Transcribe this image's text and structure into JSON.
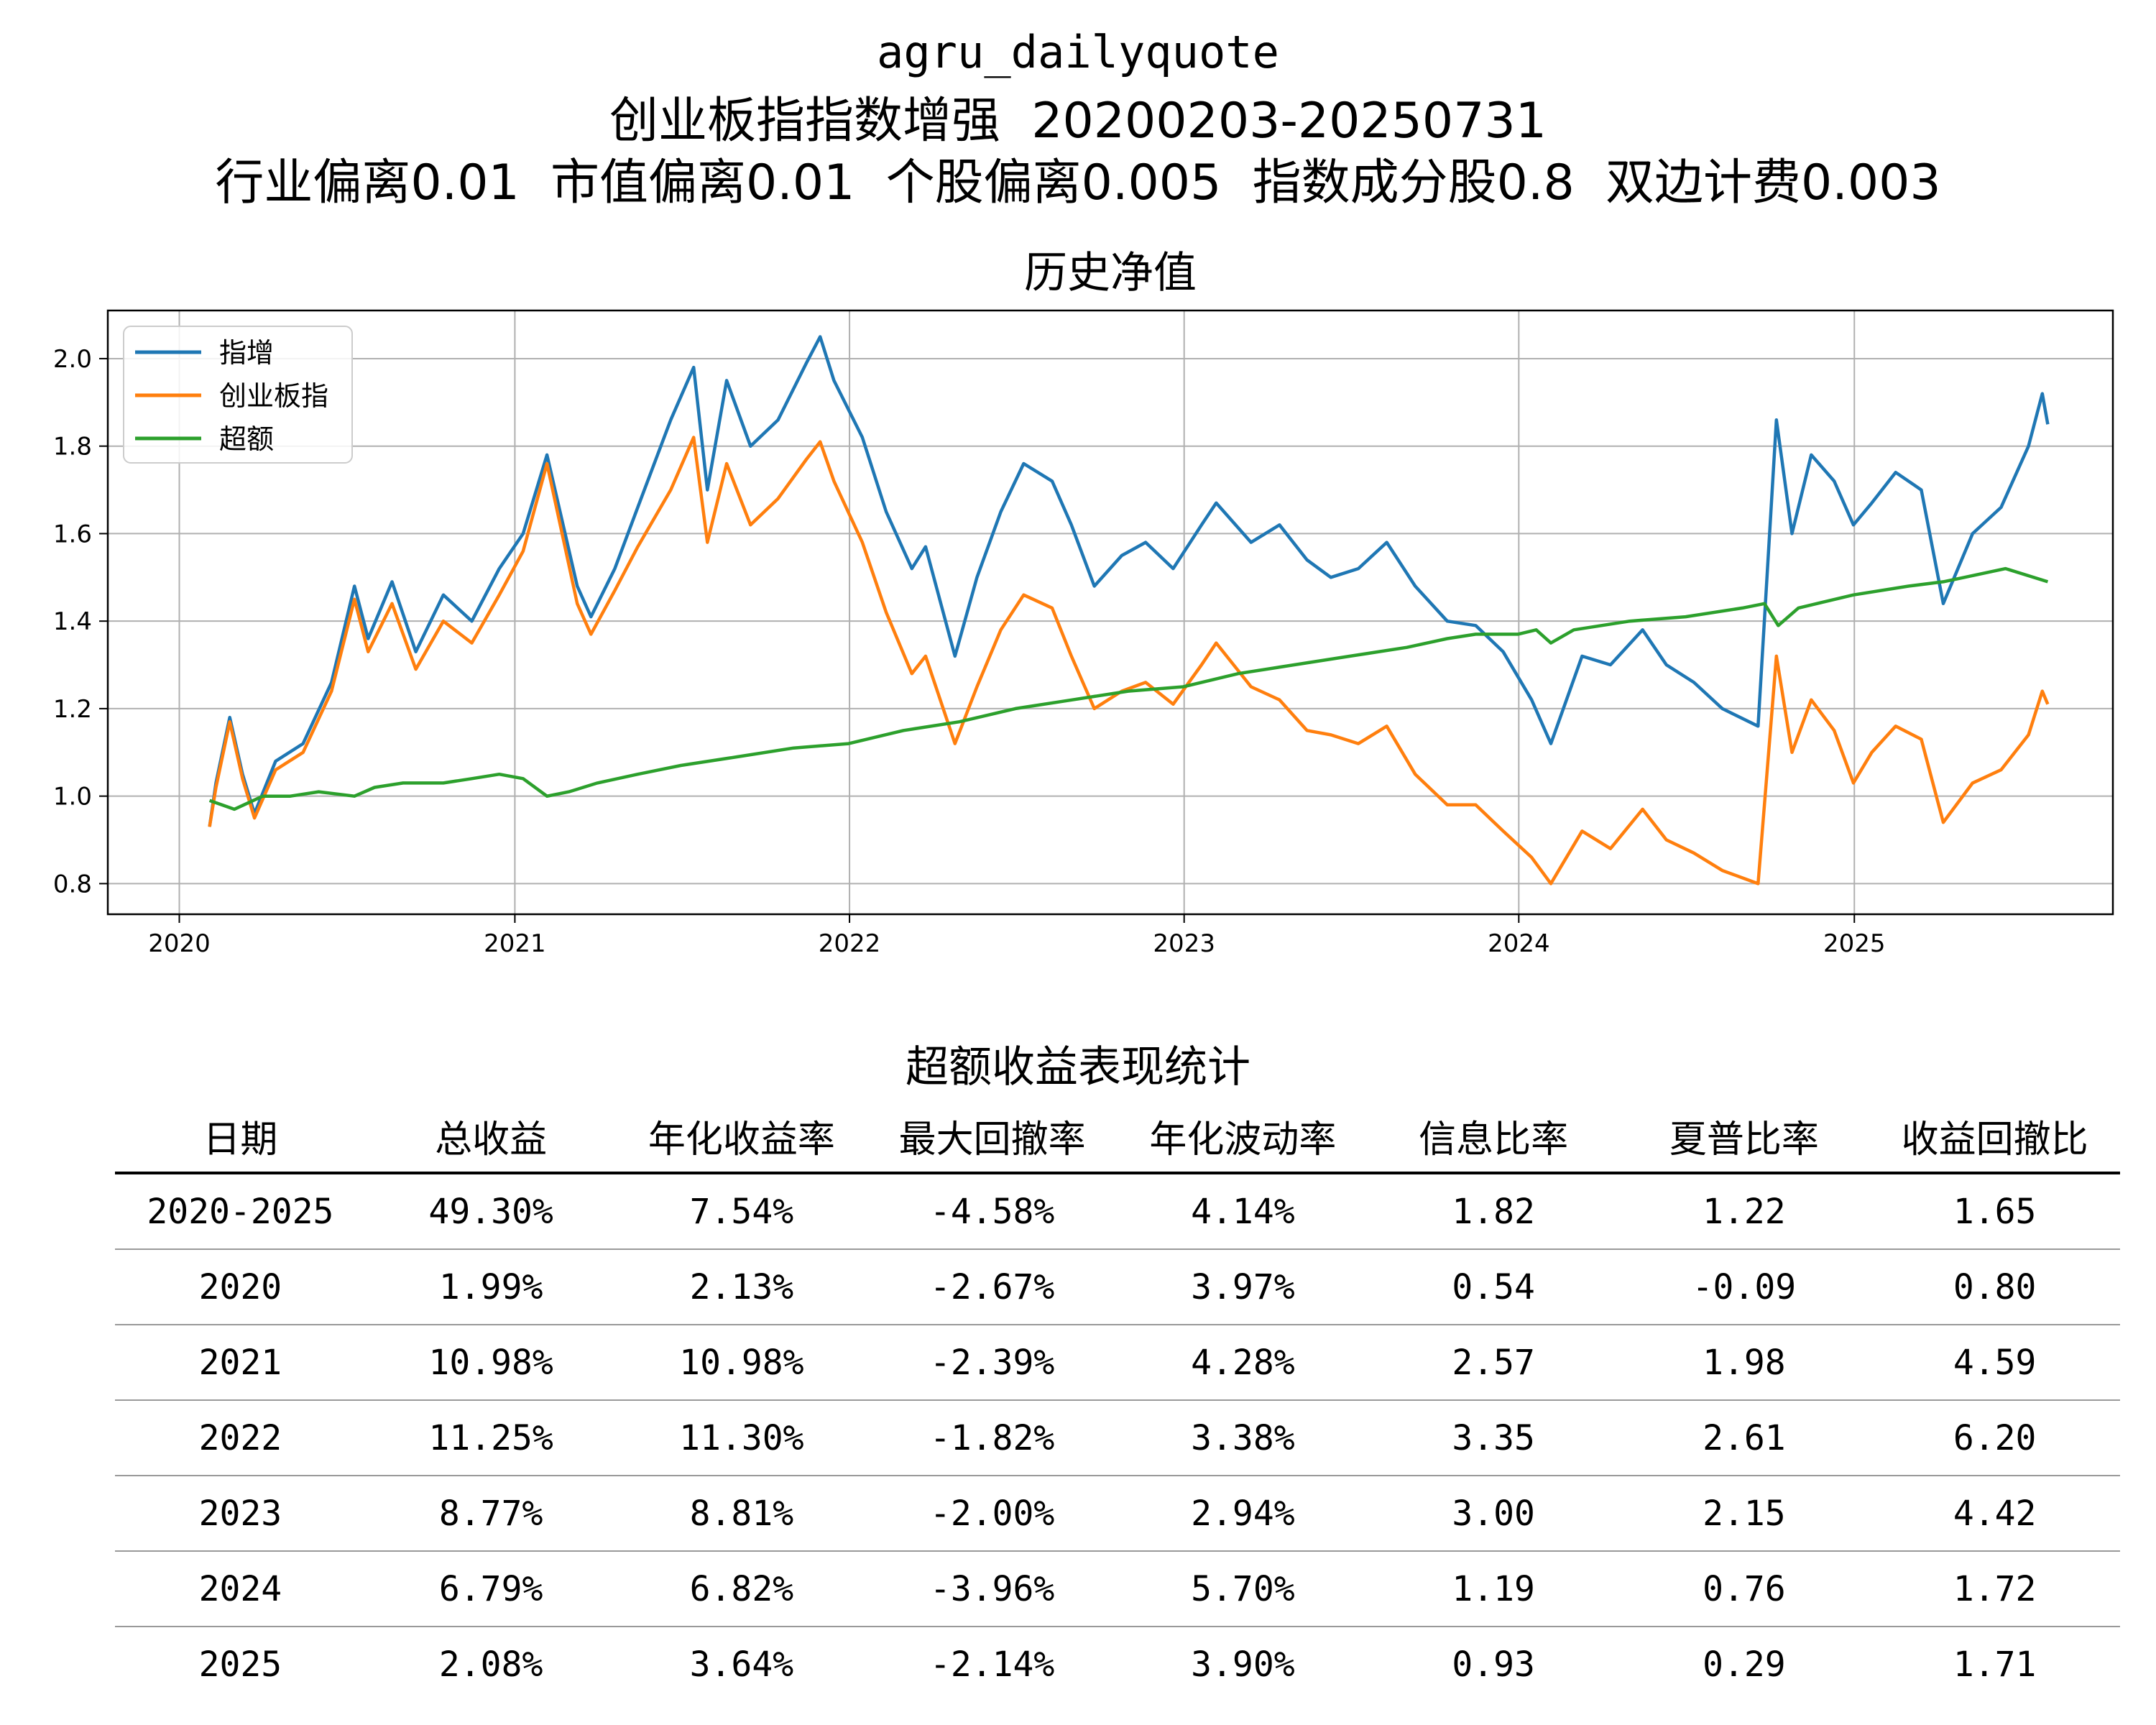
{
  "header": {
    "line1": "agru_dailyquote",
    "line2": "创业板指指数增强  20200203-20250731",
    "line3": "行业偏离0.01  市值偏离0.01  个股偏离0.005  指数成分股0.8  双边计费0.003"
  },
  "chart_data": {
    "type": "line",
    "title": "历史净值",
    "xlabel": "",
    "ylabel": "",
    "xlim": [
      "2019-10-15",
      "2025-10-10"
    ],
    "ylim": [
      0.73,
      2.11
    ],
    "x_ticks": [
      "2020",
      "2021",
      "2022",
      "2023",
      "2024",
      "2025"
    ],
    "y_ticks": [
      "0.8",
      "1.0",
      "1.2",
      "1.4",
      "1.6",
      "1.8",
      "2.0"
    ],
    "grid": true,
    "legend_position": "top-left",
    "series": [
      {
        "name": "指增",
        "color": "#1f77b4",
        "points": [
          [
            "2020-02-03",
            0.93
          ],
          [
            "2020-02-10",
            1.03
          ],
          [
            "2020-02-25",
            1.18
          ],
          [
            "2020-03-10",
            1.05
          ],
          [
            "2020-03-23",
            0.96
          ],
          [
            "2020-04-15",
            1.08
          ],
          [
            "2020-05-15",
            1.12
          ],
          [
            "2020-06-15",
            1.26
          ],
          [
            "2020-07-10",
            1.48
          ],
          [
            "2020-07-25",
            1.36
          ],
          [
            "2020-08-20",
            1.49
          ],
          [
            "2020-09-15",
            1.33
          ],
          [
            "2020-10-15",
            1.46
          ],
          [
            "2020-11-15",
            1.4
          ],
          [
            "2020-12-15",
            1.52
          ],
          [
            "2021-01-10",
            1.6
          ],
          [
            "2021-02-05",
            1.78
          ],
          [
            "2021-03-10",
            1.48
          ],
          [
            "2021-03-25",
            1.41
          ],
          [
            "2021-04-20",
            1.52
          ],
          [
            "2021-05-15",
            1.66
          ],
          [
            "2021-06-20",
            1.86
          ],
          [
            "2021-07-15",
            1.98
          ],
          [
            "2021-07-30",
            1.7
          ],
          [
            "2021-08-20",
            1.95
          ],
          [
            "2021-09-15",
            1.8
          ],
          [
            "2021-10-15",
            1.86
          ],
          [
            "2021-11-15",
            1.99
          ],
          [
            "2021-11-30",
            2.05
          ],
          [
            "2021-12-15",
            1.95
          ],
          [
            "2022-01-15",
            1.82
          ],
          [
            "2022-02-10",
            1.65
          ],
          [
            "2022-03-10",
            1.52
          ],
          [
            "2022-03-25",
            1.57
          ],
          [
            "2022-04-26",
            1.32
          ],
          [
            "2022-05-20",
            1.5
          ],
          [
            "2022-06-15",
            1.65
          ],
          [
            "2022-07-10",
            1.76
          ],
          [
            "2022-08-10",
            1.72
          ],
          [
            "2022-08-31",
            1.62
          ],
          [
            "2022-09-25",
            1.48
          ],
          [
            "2022-10-25",
            1.55
          ],
          [
            "2022-11-20",
            1.58
          ],
          [
            "2022-12-20",
            1.52
          ],
          [
            "2023-01-20",
            1.62
          ],
          [
            "2023-02-05",
            1.67
          ],
          [
            "2023-03-15",
            1.58
          ],
          [
            "2023-04-15",
            1.62
          ],
          [
            "2023-05-15",
            1.54
          ],
          [
            "2023-06-10",
            1.5
          ],
          [
            "2023-07-10",
            1.52
          ],
          [
            "2023-08-10",
            1.58
          ],
          [
            "2023-09-10",
            1.48
          ],
          [
            "2023-10-15",
            1.4
          ],
          [
            "2023-11-15",
            1.39
          ],
          [
            "2023-12-15",
            1.33
          ],
          [
            "2024-01-15",
            1.22
          ],
          [
            "2024-02-05",
            1.12
          ],
          [
            "2024-03-10",
            1.32
          ],
          [
            "2024-04-10",
            1.3
          ],
          [
            "2024-05-15",
            1.38
          ],
          [
            "2024-06-10",
            1.3
          ],
          [
            "2024-07-10",
            1.26
          ],
          [
            "2024-08-10",
            1.2
          ],
          [
            "2024-09-18",
            1.16
          ],
          [
            "2024-10-08",
            1.86
          ],
          [
            "2024-10-25",
            1.6
          ],
          [
            "2024-11-15",
            1.78
          ],
          [
            "2024-12-10",
            1.72
          ],
          [
            "2024-12-31",
            1.62
          ],
          [
            "2025-01-20",
            1.67
          ],
          [
            "2025-02-15",
            1.74
          ],
          [
            "2025-03-15",
            1.7
          ],
          [
            "2025-04-08",
            1.44
          ],
          [
            "2025-05-10",
            1.6
          ],
          [
            "2025-06-10",
            1.66
          ],
          [
            "2025-07-10",
            1.8
          ],
          [
            "2025-07-25",
            1.92
          ],
          [
            "2025-07-31",
            1.85
          ]
        ]
      },
      {
        "name": "创业板指",
        "color": "#ff7f0e",
        "points": [
          [
            "2020-02-03",
            0.93
          ],
          [
            "2020-02-10",
            1.02
          ],
          [
            "2020-02-25",
            1.17
          ],
          [
            "2020-03-10",
            1.04
          ],
          [
            "2020-03-23",
            0.95
          ],
          [
            "2020-04-15",
            1.06
          ],
          [
            "2020-05-15",
            1.1
          ],
          [
            "2020-06-15",
            1.24
          ],
          [
            "2020-07-10",
            1.45
          ],
          [
            "2020-07-25",
            1.33
          ],
          [
            "2020-08-20",
            1.44
          ],
          [
            "2020-09-15",
            1.29
          ],
          [
            "2020-10-15",
            1.4
          ],
          [
            "2020-11-15",
            1.35
          ],
          [
            "2020-12-15",
            1.46
          ],
          [
            "2021-01-10",
            1.56
          ],
          [
            "2021-02-05",
            1.76
          ],
          [
            "2021-03-10",
            1.44
          ],
          [
            "2021-03-25",
            1.37
          ],
          [
            "2021-04-20",
            1.47
          ],
          [
            "2021-05-15",
            1.57
          ],
          [
            "2021-06-20",
            1.7
          ],
          [
            "2021-07-15",
            1.82
          ],
          [
            "2021-07-30",
            1.58
          ],
          [
            "2021-08-20",
            1.76
          ],
          [
            "2021-09-15",
            1.62
          ],
          [
            "2021-10-15",
            1.68
          ],
          [
            "2021-11-15",
            1.77
          ],
          [
            "2021-11-30",
            1.81
          ],
          [
            "2021-12-15",
            1.72
          ],
          [
            "2022-01-15",
            1.58
          ],
          [
            "2022-02-10",
            1.42
          ],
          [
            "2022-03-10",
            1.28
          ],
          [
            "2022-03-25",
            1.32
          ],
          [
            "2022-04-26",
            1.12
          ],
          [
            "2022-05-20",
            1.25
          ],
          [
            "2022-06-15",
            1.38
          ],
          [
            "2022-07-10",
            1.46
          ],
          [
            "2022-08-10",
            1.43
          ],
          [
            "2022-08-31",
            1.32
          ],
          [
            "2022-09-25",
            1.2
          ],
          [
            "2022-10-25",
            1.24
          ],
          [
            "2022-11-20",
            1.26
          ],
          [
            "2022-12-20",
            1.21
          ],
          [
            "2023-01-20",
            1.3
          ],
          [
            "2023-02-05",
            1.35
          ],
          [
            "2023-03-15",
            1.25
          ],
          [
            "2023-04-15",
            1.22
          ],
          [
            "2023-05-15",
            1.15
          ],
          [
            "2023-06-10",
            1.14
          ],
          [
            "2023-07-10",
            1.12
          ],
          [
            "2023-08-10",
            1.16
          ],
          [
            "2023-09-10",
            1.05
          ],
          [
            "2023-10-15",
            0.98
          ],
          [
            "2023-11-15",
            0.98
          ],
          [
            "2023-12-15",
            0.92
          ],
          [
            "2024-01-15",
            0.86
          ],
          [
            "2024-02-05",
            0.8
          ],
          [
            "2024-03-10",
            0.92
          ],
          [
            "2024-04-10",
            0.88
          ],
          [
            "2024-05-15",
            0.97
          ],
          [
            "2024-06-10",
            0.9
          ],
          [
            "2024-07-10",
            0.87
          ],
          [
            "2024-08-10",
            0.83
          ],
          [
            "2024-09-18",
            0.8
          ],
          [
            "2024-10-08",
            1.32
          ],
          [
            "2024-10-25",
            1.1
          ],
          [
            "2024-11-15",
            1.22
          ],
          [
            "2024-12-10",
            1.15
          ],
          [
            "2024-12-31",
            1.03
          ],
          [
            "2025-01-20",
            1.1
          ],
          [
            "2025-02-15",
            1.16
          ],
          [
            "2025-03-15",
            1.13
          ],
          [
            "2025-04-08",
            0.94
          ],
          [
            "2025-05-10",
            1.03
          ],
          [
            "2025-06-10",
            1.06
          ],
          [
            "2025-07-10",
            1.14
          ],
          [
            "2025-07-25",
            1.24
          ],
          [
            "2025-07-31",
            1.21
          ]
        ]
      },
      {
        "name": "超额",
        "color": "#2ca02c",
        "points": [
          [
            "2020-02-03",
            0.99
          ],
          [
            "2020-03-01",
            0.97
          ],
          [
            "2020-04-01",
            1.0
          ],
          [
            "2020-05-01",
            1.0
          ],
          [
            "2020-06-01",
            1.01
          ],
          [
            "2020-07-10",
            1.0
          ],
          [
            "2020-08-01",
            1.02
          ],
          [
            "2020-09-01",
            1.03
          ],
          [
            "2020-10-15",
            1.03
          ],
          [
            "2020-11-15",
            1.04
          ],
          [
            "2020-12-15",
            1.05
          ],
          [
            "2021-01-10",
            1.04
          ],
          [
            "2021-02-05",
            1.0
          ],
          [
            "2021-03-01",
            1.01
          ],
          [
            "2021-04-01",
            1.03
          ],
          [
            "2021-05-15",
            1.05
          ],
          [
            "2021-07-01",
            1.07
          ],
          [
            "2021-09-01",
            1.09
          ],
          [
            "2021-11-01",
            1.11
          ],
          [
            "2021-12-31",
            1.12
          ],
          [
            "2022-03-01",
            1.15
          ],
          [
            "2022-05-01",
            1.17
          ],
          [
            "2022-07-01",
            1.2
          ],
          [
            "2022-09-01",
            1.22
          ],
          [
            "2022-11-01",
            1.24
          ],
          [
            "2022-12-31",
            1.25
          ],
          [
            "2023-03-01",
            1.28
          ],
          [
            "2023-05-01",
            1.3
          ],
          [
            "2023-07-01",
            1.32
          ],
          [
            "2023-09-01",
            1.34
          ],
          [
            "2023-10-15",
            1.36
          ],
          [
            "2023-11-15",
            1.37
          ],
          [
            "2023-12-31",
            1.37
          ],
          [
            "2024-01-20",
            1.38
          ],
          [
            "2024-02-05",
            1.35
          ],
          [
            "2024-03-01",
            1.38
          ],
          [
            "2024-05-01",
            1.4
          ],
          [
            "2024-07-01",
            1.41
          ],
          [
            "2024-09-01",
            1.43
          ],
          [
            "2024-09-25",
            1.44
          ],
          [
            "2024-10-10",
            1.39
          ],
          [
            "2024-11-01",
            1.43
          ],
          [
            "2024-12-31",
            1.46
          ],
          [
            "2025-03-01",
            1.48
          ],
          [
            "2025-04-08",
            1.49
          ],
          [
            "2025-05-01",
            1.5
          ],
          [
            "2025-06-15",
            1.52
          ],
          [
            "2025-07-31",
            1.49
          ]
        ]
      }
    ]
  },
  "stats_table": {
    "title": "超额收益表现统计",
    "headers": [
      "日期",
      "总收益",
      "年化收益率",
      "最大回撤率",
      "年化波动率",
      "信息比率",
      "夏普比率",
      "收益回撤比"
    ],
    "rows": [
      [
        "2020-2025",
        "49.30%",
        "7.54%",
        "-4.58%",
        "4.14%",
        "1.82",
        "1.22",
        "1.65"
      ],
      [
        "2020",
        "1.99%",
        "2.13%",
        "-2.67%",
        "3.97%",
        "0.54",
        "-0.09",
        "0.80"
      ],
      [
        "2021",
        "10.98%",
        "10.98%",
        "-2.39%",
        "4.28%",
        "2.57",
        "1.98",
        "4.59"
      ],
      [
        "2022",
        "11.25%",
        "11.30%",
        "-1.82%",
        "3.38%",
        "3.35",
        "2.61",
        "6.20"
      ],
      [
        "2023",
        "8.77%",
        "8.81%",
        "-2.00%",
        "2.94%",
        "3.00",
        "2.15",
        "4.42"
      ],
      [
        "2024",
        "6.79%",
        "6.82%",
        "-3.96%",
        "5.70%",
        "1.19",
        "0.76",
        "1.72"
      ],
      [
        "2025",
        "2.08%",
        "3.64%",
        "-2.14%",
        "3.90%",
        "0.93",
        "0.29",
        "1.71"
      ]
    ]
  }
}
